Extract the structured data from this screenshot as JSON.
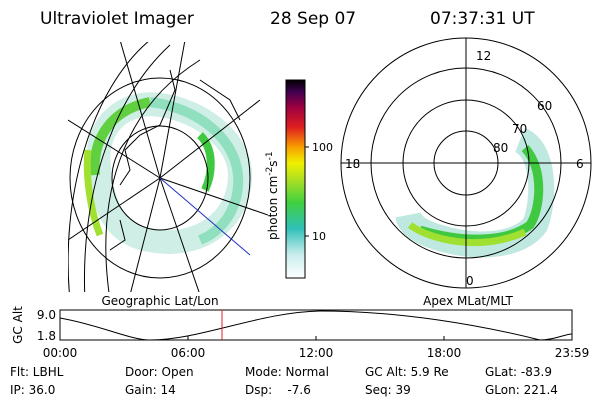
{
  "header": {
    "title": "Ultraviolet Imager",
    "date": "28 Sep 07",
    "time": "07:37:31 UT"
  },
  "left_panel": {
    "caption": "Geographic Lat/Lon"
  },
  "right_panel": {
    "caption": "Apex MLat/MLT",
    "mlt_labels": [
      "12",
      "18",
      "6",
      "0"
    ],
    "lat_labels": [
      "60",
      "70",
      "80"
    ]
  },
  "colorbar": {
    "label": [
      "photon cm",
      "-2",
      "s",
      "-1"
    ],
    "ticks": [
      "100",
      "10"
    ]
  },
  "orbit": {
    "axis_label": "GC Alt",
    "y_labels": [
      "9.0",
      "1.8"
    ],
    "x_labels": [
      "00:00",
      "06:00",
      "12:00",
      "18:00",
      "23:59"
    ]
  },
  "footer": [
    [
      "Flt: LBHL",
      "Door: Open",
      "Mode: Normal",
      "GC Alt: 5.9 Re",
      "GLat: -83.9"
    ],
    [
      "IP: 36.0",
      "Gain: 14",
      "Dsp:    -7.6",
      "Seq: 39",
      "GLon: 221.4"
    ]
  ]
}
